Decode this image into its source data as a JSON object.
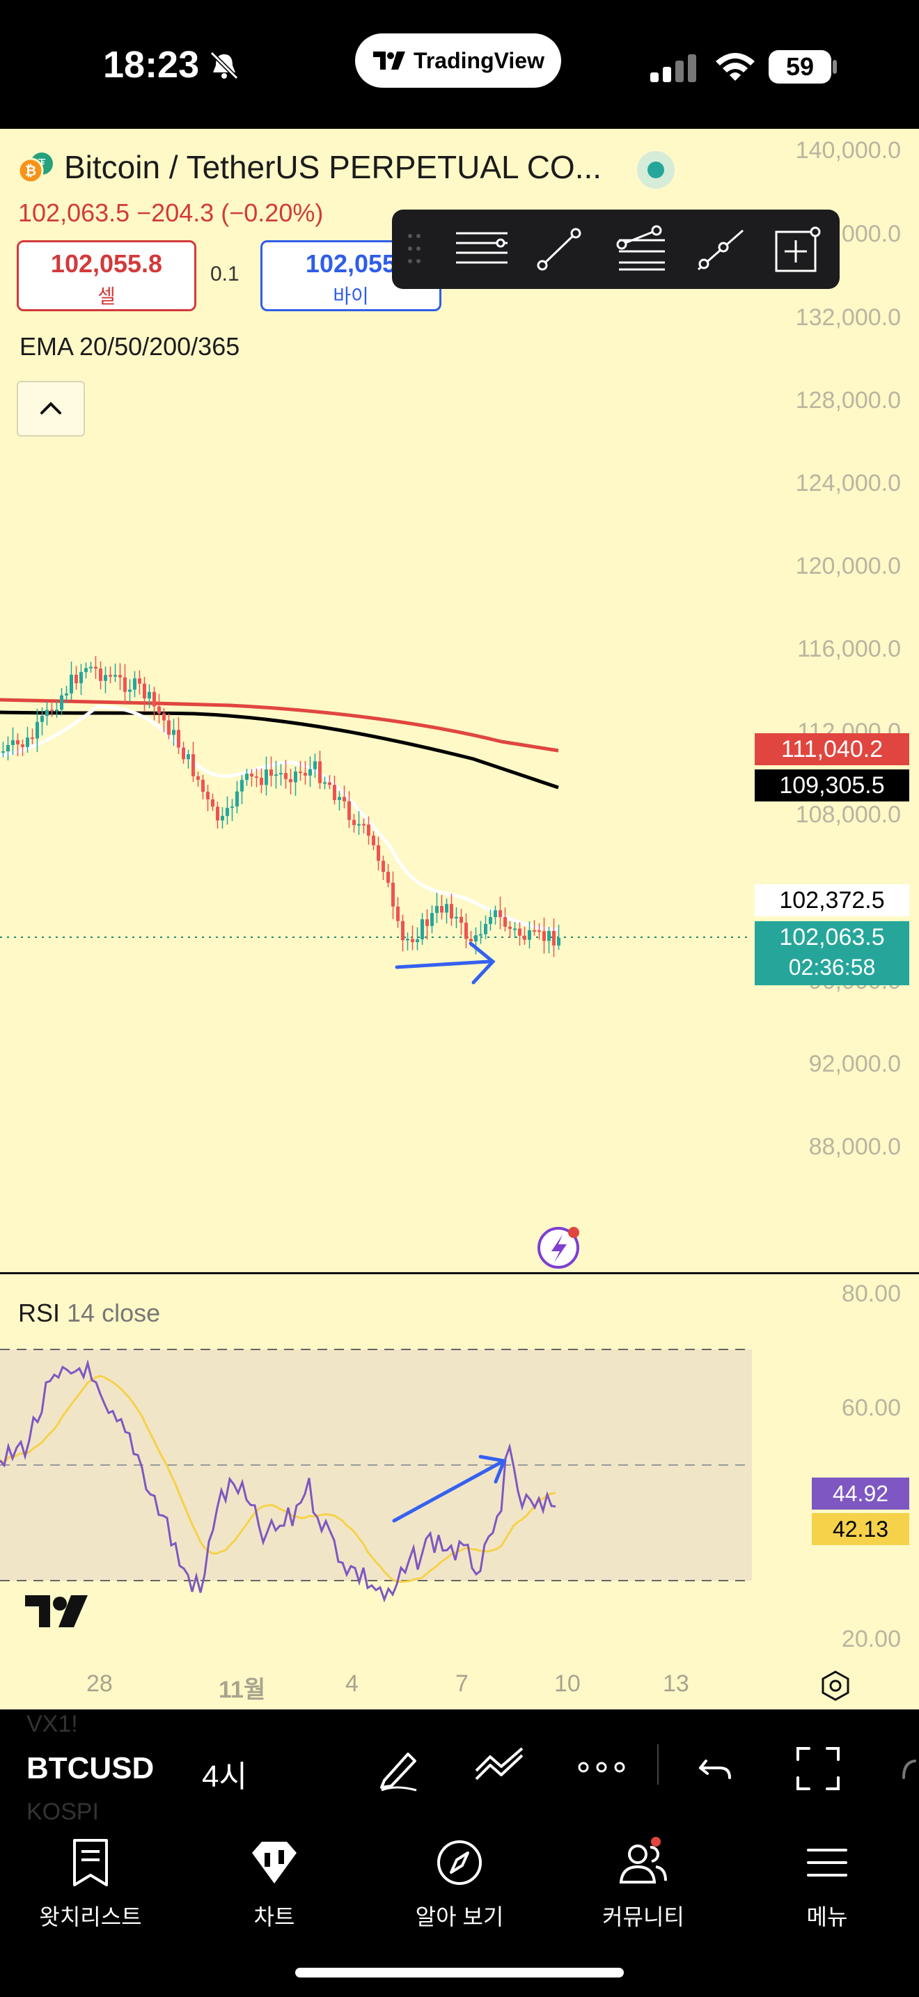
{
  "status": {
    "time": "18:23",
    "app_pill": "TradingView",
    "battery": "59"
  },
  "symbol": {
    "title": "Bitcoin / TetherUS PERPETUAL CO...",
    "quote": "102,063.5  −204.3 (−0.20%)",
    "sell_price": "102,055.8",
    "sell_label": "셀",
    "spread": "0.1",
    "buy_price": "102,055",
    "buy_label": "바이"
  },
  "indicator_label": "EMA 20/50/200/365",
  "price_axis": [
    "140,000.0",
    "136,000.0",
    "132,000.0",
    "128,000.0",
    "124,000.0",
    "120,000.0",
    "116,000.0",
    "112,000.0",
    "108,000.0",
    "100,000.0",
    "96,000.0",
    "92,000.0",
    "88,000.0"
  ],
  "price_tags": {
    "ema_red": "111,040.2",
    "ema_black": "109,305.5",
    "ema_white": "102,372.5",
    "last_price": "102,063.5",
    "countdown": "02:36:58"
  },
  "rsi": {
    "label_main": "RSI",
    "label_params": "14 close",
    "axis": [
      "80.00",
      "60.00",
      "20.00"
    ],
    "rsi_value": "44.92",
    "rsi_ma_value": "42.13"
  },
  "time_axis": [
    "28",
    "11월",
    "4",
    "7",
    "10",
    "13"
  ],
  "bottom_toolbar": {
    "symbol": "BTCUSD",
    "interval": "4시",
    "ghost_top": "VX1!",
    "ghost_bottom": "KOSPI"
  },
  "tabs": [
    {
      "label": "왓치리스트",
      "icon": "bookmark-icon"
    },
    {
      "label": "차트",
      "icon": "chart-icon"
    },
    {
      "label": "알아 보기",
      "icon": "compass-icon"
    },
    {
      "label": "커뮤니티",
      "icon": "community-icon"
    },
    {
      "label": "메뉴",
      "icon": "menu-icon"
    }
  ],
  "colors": {
    "chart_bg": "#fef9c7",
    "up": "#26a69a",
    "down": "#ef5350",
    "ema_red": "#e0463f",
    "ema_black": "#000000",
    "rsi_line": "#7e57c2",
    "rsi_ma": "#f5d24a",
    "annotation": "#3561f0"
  }
}
